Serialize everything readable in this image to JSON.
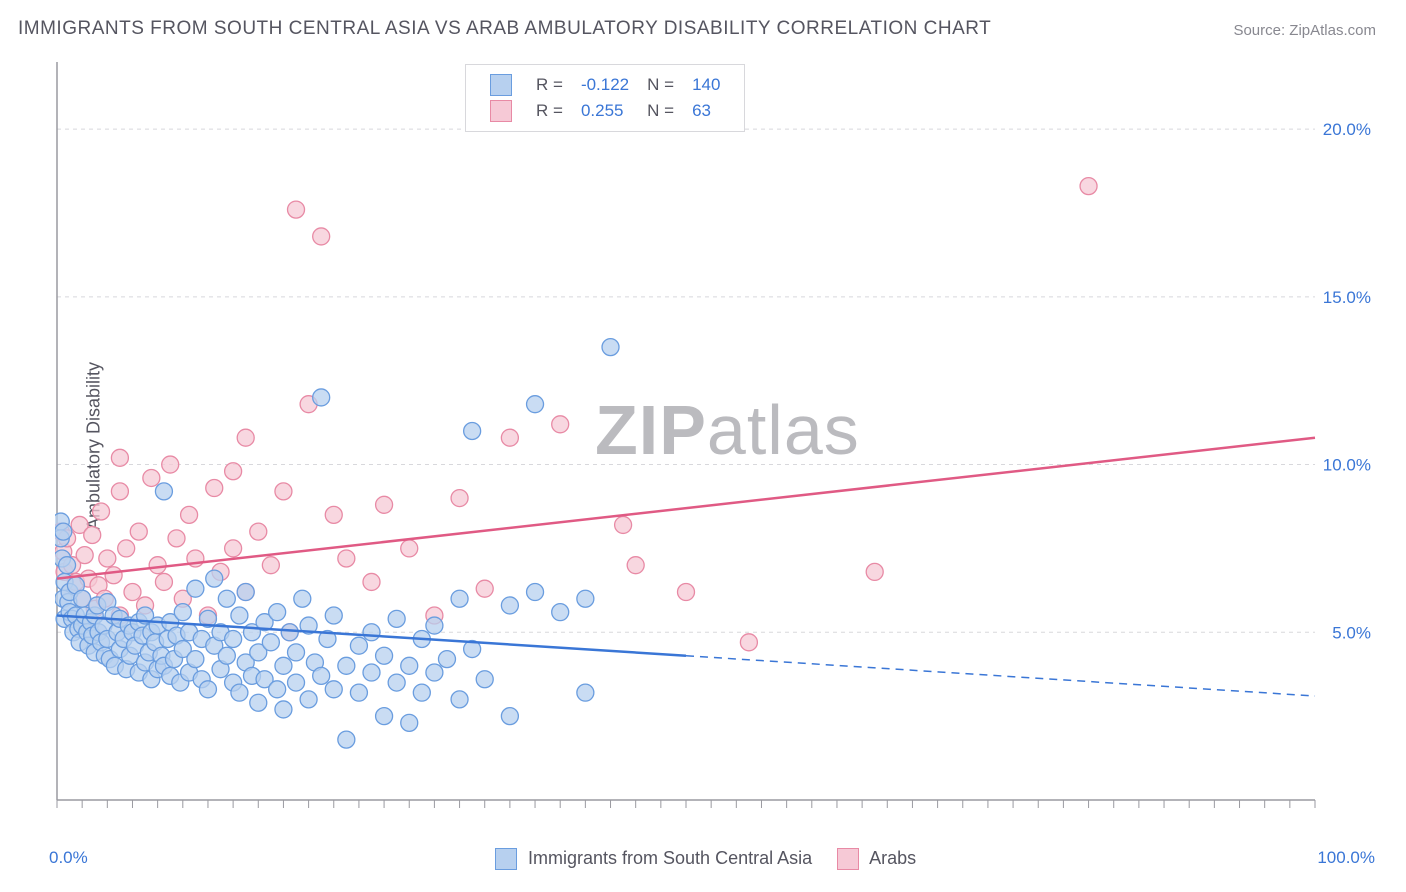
{
  "title": "IMMIGRANTS FROM SOUTH CENTRAL ASIA VS ARAB AMBULATORY DISABILITY CORRELATION CHART",
  "source": "Source: ZipAtlas.com",
  "ylabel": "Ambulatory Disability",
  "watermark_a": "ZIP",
  "watermark_b": "atlas",
  "x_axis": {
    "min": 0,
    "max": 100,
    "min_label": "0.0%",
    "max_label": "100.0%"
  },
  "y_axis": {
    "min": 0,
    "max": 22,
    "ticks": [
      5,
      10,
      15,
      20
    ],
    "tick_labels": [
      "5.0%",
      "10.0%",
      "15.0%",
      "20.0%"
    ]
  },
  "grid_color": "#d8d8dc",
  "axis_line_color": "#9a9aa0",
  "series": {
    "blue": {
      "label": "Immigrants from South Central Asia",
      "fill": "#b7d0ef",
      "stroke": "#6a9ddf",
      "line_stroke": "#3a76d6",
      "r_label": "R =",
      "r_value": "-0.122",
      "n_label": "N =",
      "n_value": "140",
      "trend": {
        "x0": 0,
        "y0": 5.5,
        "x1_solid": 50,
        "y1_solid": 4.3,
        "x1_dash": 100,
        "y1_dash": 3.1
      },
      "points": [
        [
          0.3,
          8.3
        ],
        [
          0.3,
          7.8
        ],
        [
          0.4,
          7.2
        ],
        [
          0.5,
          8.0
        ],
        [
          0.5,
          6.0
        ],
        [
          0.6,
          6.5
        ],
        [
          0.6,
          5.4
        ],
        [
          0.8,
          7.0
        ],
        [
          0.9,
          5.9
        ],
        [
          1.0,
          5.6
        ],
        [
          1.0,
          6.2
        ],
        [
          1.2,
          5.4
        ],
        [
          1.3,
          5.0
        ],
        [
          1.5,
          6.4
        ],
        [
          1.5,
          5.5
        ],
        [
          1.7,
          5.1
        ],
        [
          1.8,
          4.7
        ],
        [
          2.0,
          5.2
        ],
        [
          2.0,
          6.0
        ],
        [
          2.2,
          5.5
        ],
        [
          2.4,
          5.0
        ],
        [
          2.5,
          4.6
        ],
        [
          2.7,
          5.3
        ],
        [
          2.8,
          4.9
        ],
        [
          3.0,
          5.5
        ],
        [
          3.0,
          4.4
        ],
        [
          3.2,
          5.8
        ],
        [
          3.3,
          5.0
        ],
        [
          3.5,
          4.7
        ],
        [
          3.7,
          5.2
        ],
        [
          3.8,
          4.3
        ],
        [
          4.0,
          5.9
        ],
        [
          4.0,
          4.8
        ],
        [
          4.2,
          4.2
        ],
        [
          4.5,
          5.5
        ],
        [
          4.6,
          4.0
        ],
        [
          4.8,
          5.0
        ],
        [
          5.0,
          4.5
        ],
        [
          5.0,
          5.4
        ],
        [
          5.3,
          4.8
        ],
        [
          5.5,
          3.9
        ],
        [
          5.7,
          5.2
        ],
        [
          5.8,
          4.3
        ],
        [
          6.0,
          5.0
        ],
        [
          6.2,
          4.6
        ],
        [
          6.5,
          5.3
        ],
        [
          6.5,
          3.8
        ],
        [
          6.8,
          4.9
        ],
        [
          7.0,
          4.1
        ],
        [
          7.0,
          5.5
        ],
        [
          7.3,
          4.4
        ],
        [
          7.5,
          5.0
        ],
        [
          7.5,
          3.6
        ],
        [
          7.8,
          4.7
        ],
        [
          8.0,
          3.9
        ],
        [
          8.0,
          5.2
        ],
        [
          8.3,
          4.3
        ],
        [
          8.5,
          9.2
        ],
        [
          8.5,
          4.0
        ],
        [
          8.8,
          4.8
        ],
        [
          9.0,
          3.7
        ],
        [
          9.0,
          5.3
        ],
        [
          9.3,
          4.2
        ],
        [
          9.5,
          4.9
        ],
        [
          9.8,
          3.5
        ],
        [
          10.0,
          4.5
        ],
        [
          10.0,
          5.6
        ],
        [
          10.5,
          3.8
        ],
        [
          10.5,
          5.0
        ],
        [
          11.0,
          4.2
        ],
        [
          11.0,
          6.3
        ],
        [
          11.5,
          3.6
        ],
        [
          11.5,
          4.8
        ],
        [
          12.0,
          5.4
        ],
        [
          12.0,
          3.3
        ],
        [
          12.5,
          4.6
        ],
        [
          12.5,
          6.6
        ],
        [
          13.0,
          3.9
        ],
        [
          13.0,
          5.0
        ],
        [
          13.5,
          4.3
        ],
        [
          13.5,
          6.0
        ],
        [
          14.0,
          3.5
        ],
        [
          14.0,
          4.8
        ],
        [
          14.5,
          5.5
        ],
        [
          14.5,
          3.2
        ],
        [
          15.0,
          4.1
        ],
        [
          15.0,
          6.2
        ],
        [
          15.5,
          3.7
        ],
        [
          15.5,
          5.0
        ],
        [
          16.0,
          4.4
        ],
        [
          16.0,
          2.9
        ],
        [
          16.5,
          5.3
        ],
        [
          16.5,
          3.6
        ],
        [
          17.0,
          4.7
        ],
        [
          17.5,
          3.3
        ],
        [
          17.5,
          5.6
        ],
        [
          18.0,
          4.0
        ],
        [
          18.0,
          2.7
        ],
        [
          18.5,
          5.0
        ],
        [
          19.0,
          3.5
        ],
        [
          19.0,
          4.4
        ],
        [
          19.5,
          6.0
        ],
        [
          20.0,
          3.0
        ],
        [
          20.0,
          5.2
        ],
        [
          20.5,
          4.1
        ],
        [
          21.0,
          3.7
        ],
        [
          21.0,
          12.0
        ],
        [
          21.5,
          4.8
        ],
        [
          22.0,
          3.3
        ],
        [
          22.0,
          5.5
        ],
        [
          23.0,
          4.0
        ],
        [
          23.0,
          1.8
        ],
        [
          24.0,
          4.6
        ],
        [
          24.0,
          3.2
        ],
        [
          25.0,
          5.0
        ],
        [
          25.0,
          3.8
        ],
        [
          26.0,
          4.3
        ],
        [
          26.0,
          2.5
        ],
        [
          27.0,
          5.4
        ],
        [
          27.0,
          3.5
        ],
        [
          28.0,
          4.0
        ],
        [
          28.0,
          2.3
        ],
        [
          29.0,
          4.8
        ],
        [
          29.0,
          3.2
        ],
        [
          30.0,
          5.2
        ],
        [
          30.0,
          3.8
        ],
        [
          31.0,
          4.2
        ],
        [
          32.0,
          6.0
        ],
        [
          32.0,
          3.0
        ],
        [
          33.0,
          4.5
        ],
        [
          33.0,
          11.0
        ],
        [
          34.0,
          3.6
        ],
        [
          36.0,
          5.8
        ],
        [
          36.0,
          2.5
        ],
        [
          38.0,
          11.8
        ],
        [
          38.0,
          6.2
        ],
        [
          40.0,
          5.6
        ],
        [
          42.0,
          3.2
        ],
        [
          42.0,
          6.0
        ],
        [
          44.0,
          13.5
        ]
      ]
    },
    "pink": {
      "label": "Arabs",
      "fill": "#f6c9d6",
      "stroke": "#e88aa5",
      "line_stroke": "#e05a84",
      "r_label": "R =",
      "r_value": "0.255",
      "n_label": "N =",
      "n_value": "63",
      "trend": {
        "x0": 0,
        "y0": 6.6,
        "x1_solid": 100,
        "y1_solid": 10.8,
        "x1_dash": 100,
        "y1_dash": 10.8
      },
      "points": [
        [
          0.3,
          8.0
        ],
        [
          0.5,
          7.4
        ],
        [
          0.6,
          6.8
        ],
        [
          0.8,
          7.8
        ],
        [
          1.0,
          6.2
        ],
        [
          1.2,
          7.0
        ],
        [
          1.5,
          6.5
        ],
        [
          1.8,
          8.2
        ],
        [
          2.0,
          6.0
        ],
        [
          2.2,
          7.3
        ],
        [
          2.5,
          6.6
        ],
        [
          2.8,
          7.9
        ],
        [
          3.0,
          5.7
        ],
        [
          3.3,
          6.4
        ],
        [
          3.5,
          8.6
        ],
        [
          3.8,
          6.0
        ],
        [
          4.0,
          7.2
        ],
        [
          4.5,
          6.7
        ],
        [
          5.0,
          5.5
        ],
        [
          5.0,
          9.2
        ],
        [
          5.0,
          10.2
        ],
        [
          5.5,
          7.5
        ],
        [
          6.0,
          6.2
        ],
        [
          6.5,
          8.0
        ],
        [
          7.0,
          5.8
        ],
        [
          7.5,
          9.6
        ],
        [
          8.0,
          7.0
        ],
        [
          8.5,
          6.5
        ],
        [
          9.0,
          10.0
        ],
        [
          9.5,
          7.8
        ],
        [
          10.0,
          6.0
        ],
        [
          10.5,
          8.5
        ],
        [
          11.0,
          7.2
        ],
        [
          12.0,
          5.5
        ],
        [
          12.5,
          9.3
        ],
        [
          13.0,
          6.8
        ],
        [
          14.0,
          9.8
        ],
        [
          14.0,
          7.5
        ],
        [
          15.0,
          10.8
        ],
        [
          15.0,
          6.2
        ],
        [
          16.0,
          8.0
        ],
        [
          17.0,
          7.0
        ],
        [
          18.0,
          9.2
        ],
        [
          18.5,
          5.0
        ],
        [
          19.0,
          17.6
        ],
        [
          20.0,
          11.8
        ],
        [
          21.0,
          16.8
        ],
        [
          22.0,
          8.5
        ],
        [
          23.0,
          7.2
        ],
        [
          25.0,
          6.5
        ],
        [
          26.0,
          8.8
        ],
        [
          28.0,
          7.5
        ],
        [
          30.0,
          5.5
        ],
        [
          32.0,
          9.0
        ],
        [
          34.0,
          6.3
        ],
        [
          36.0,
          10.8
        ],
        [
          40.0,
          11.2
        ],
        [
          45.0,
          8.2
        ],
        [
          46.0,
          7.0
        ],
        [
          50.0,
          6.2
        ],
        [
          55.0,
          4.7
        ],
        [
          65.0,
          6.8
        ],
        [
          82.0,
          18.3
        ]
      ]
    }
  }
}
